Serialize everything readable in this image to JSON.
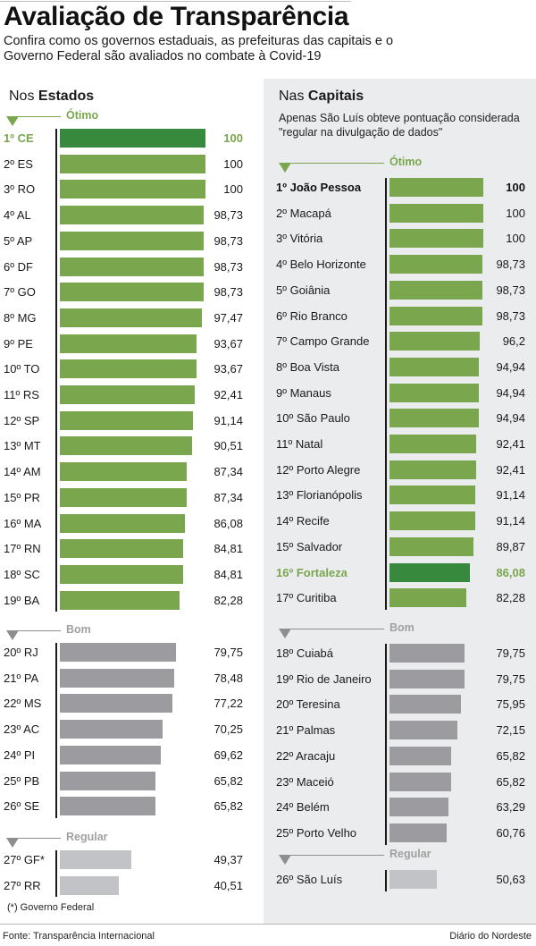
{
  "header": {
    "title": "Avaliação de Transparência",
    "subtitle": "Confira como os governos estaduais, as prefeituras das capitais e o Governo Federal são avaliados no combate à Covid-19"
  },
  "colors": {
    "highlight": "#37893e",
    "otimo": "#7aa64e",
    "bom": "#9c9b9f",
    "regular": "#c2c3c6",
    "otimo_label": "#7aa64e",
    "bom_label": "#a0a0a0",
    "panel_bg": "#ebecee"
  },
  "states": {
    "title_prefix": "Nos",
    "title_bold": "Estados",
    "footnote": "(*) Governo Federal"
  },
  "capitals": {
    "title_prefix": "Nas",
    "title_bold": "Capitais",
    "note": "Apenas São Luís obteve pontuação considerada \"regular na divulgação de dados\""
  },
  "footer": {
    "source": "Fonte: Transparência Internacional",
    "credit": "Diário do Nordeste"
  },
  "chart_data": [
    {
      "type": "bar",
      "orientation": "horizontal",
      "title": "Nos Estados",
      "xlim": [
        0,
        100
      ],
      "categories_groups": [
        "Ótimo",
        "Bom",
        "Regular"
      ],
      "highlight": "1º CE",
      "groups": [
        {
          "label": "Ótimo",
          "rows": [
            {
              "name": "1º CE",
              "value": 100,
              "display": "100",
              "highlight": true
            },
            {
              "name": "2º ES",
              "value": 100,
              "display": "100"
            },
            {
              "name": "3º RO",
              "value": 100,
              "display": "100"
            },
            {
              "name": "4º AL",
              "value": 98.73,
              "display": "98,73"
            },
            {
              "name": "5º AP",
              "value": 98.73,
              "display": "98,73"
            },
            {
              "name": "6º DF",
              "value": 98.73,
              "display": "98,73"
            },
            {
              "name": "7º GO",
              "value": 98.73,
              "display": "98,73"
            },
            {
              "name": "8º MG",
              "value": 97.47,
              "display": "97,47"
            },
            {
              "name": "9º PE",
              "value": 93.67,
              "display": "93,67"
            },
            {
              "name": "10º TO",
              "value": 93.67,
              "display": "93,67"
            },
            {
              "name": "11º RS",
              "value": 92.41,
              "display": "92,41"
            },
            {
              "name": "12º SP",
              "value": 91.14,
              "display": "91,14"
            },
            {
              "name": "13º MT",
              "value": 90.51,
              "display": "90,51"
            },
            {
              "name": "14º AM",
              "value": 87.34,
              "display": "87,34"
            },
            {
              "name": "15º PR",
              "value": 87.34,
              "display": "87,34"
            },
            {
              "name": "16º MA",
              "value": 86.08,
              "display": "86,08"
            },
            {
              "name": "17º RN",
              "value": 84.81,
              "display": "84,81"
            },
            {
              "name": "18º SC",
              "value": 84.81,
              "display": "84,81"
            },
            {
              "name": "19º BA",
              "value": 82.28,
              "display": "82,28"
            }
          ]
        },
        {
          "label": "Bom",
          "rows": [
            {
              "name": "20º RJ",
              "value": 79.75,
              "display": "79,75"
            },
            {
              "name": "21º PA",
              "value": 78.48,
              "display": "78,48"
            },
            {
              "name": "22º MS",
              "value": 77.22,
              "display": "77,22"
            },
            {
              "name": "23º AC",
              "value": 70.25,
              "display": "70,25"
            },
            {
              "name": "24º PI",
              "value": 69.62,
              "display": "69,62"
            },
            {
              "name": "25º PB",
              "value": 65.82,
              "display": "65,82"
            },
            {
              "name": "26º SE",
              "value": 65.82,
              "display": "65,82"
            }
          ]
        },
        {
          "label": "Regular",
          "rows": [
            {
              "name": "27º GF*",
              "value": 49.37,
              "display": "49,37"
            },
            {
              "name": "27º RR",
              "value": 40.51,
              "display": "40,51"
            }
          ]
        }
      ]
    },
    {
      "type": "bar",
      "orientation": "horizontal",
      "title": "Nas Capitais",
      "xlim": [
        0,
        100
      ],
      "highlight": "16º Fortaleza",
      "groups": [
        {
          "label": "Ótimo",
          "rows": [
            {
              "name": "1º João Pessoa",
              "value": 100,
              "display": "100",
              "bold": true
            },
            {
              "name": "2º Macapá",
              "value": 100,
              "display": "100"
            },
            {
              "name": "3º Vitória",
              "value": 100,
              "display": "100"
            },
            {
              "name": "4º Belo Horizonte",
              "value": 98.73,
              "display": "98,73"
            },
            {
              "name": "5º Goiânia",
              "value": 98.73,
              "display": "98,73"
            },
            {
              "name": "6º Rio Branco",
              "value": 98.73,
              "display": "98,73"
            },
            {
              "name": "7º Campo Grande",
              "value": 96.2,
              "display": "96,2"
            },
            {
              "name": "8º Boa Vista",
              "value": 94.94,
              "display": "94,94"
            },
            {
              "name": "9º Manaus",
              "value": 94.94,
              "display": "94,94"
            },
            {
              "name": "10º São Paulo",
              "value": 94.94,
              "display": "94,94"
            },
            {
              "name": "11º Natal",
              "value": 92.41,
              "display": "92,41"
            },
            {
              "name": "12º Porto Alegre",
              "value": 92.41,
              "display": "92,41"
            },
            {
              "name": "13º Florianópolis",
              "value": 91.14,
              "display": "91,14"
            },
            {
              "name": "14º Recife",
              "value": 91.14,
              "display": "91,14"
            },
            {
              "name": "15º Salvador",
              "value": 89.87,
              "display": "89,87"
            },
            {
              "name": "16º Fortaleza",
              "value": 86.08,
              "display": "86,08",
              "highlight": true
            },
            {
              "name": "17º Curitiba",
              "value": 82.28,
              "display": "82,28"
            }
          ]
        },
        {
          "label": "Bom",
          "rows": [
            {
              "name": "18º Cuiabá",
              "value": 79.75,
              "display": "79,75"
            },
            {
              "name": "19º Rio de Janeiro",
              "value": 79.75,
              "display": "79,75"
            },
            {
              "name": "20º Teresina",
              "value": 75.95,
              "display": "75,95"
            },
            {
              "name": "21º Palmas",
              "value": 72.15,
              "display": "72,15"
            },
            {
              "name": "22º Aracaju",
              "value": 65.82,
              "display": "65,82"
            },
            {
              "name": "23º Maceió",
              "value": 65.82,
              "display": "65,82"
            },
            {
              "name": "24º Belém",
              "value": 63.29,
              "display": "63,29"
            },
            {
              "name": "25º Porto Velho",
              "value": 60.76,
              "display": "60,76"
            }
          ]
        },
        {
          "label": "Regular",
          "rows": [
            {
              "name": "26º São Luís",
              "value": 50.63,
              "display": "50,63"
            }
          ]
        }
      ]
    }
  ]
}
